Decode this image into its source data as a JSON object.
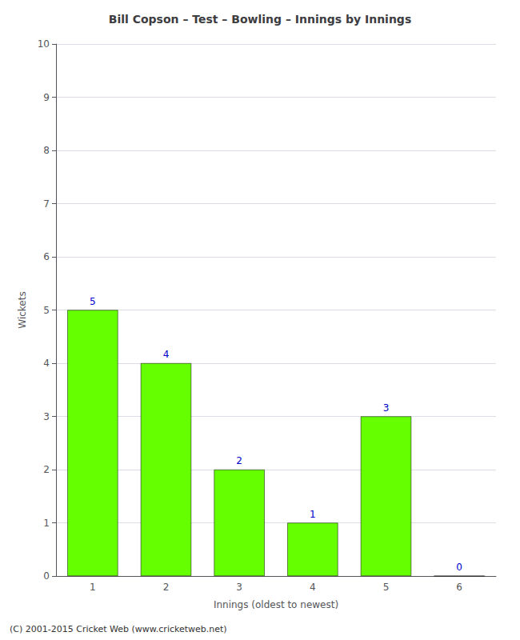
{
  "chart_data": {
    "type": "bar",
    "title": "Bill Copson – Test – Bowling – Innings by Innings",
    "xlabel": "Innings (oldest to newest)",
    "ylabel": "Wickets",
    "categories": [
      "1",
      "2",
      "3",
      "4",
      "5",
      "6"
    ],
    "values": [
      5,
      4,
      2,
      1,
      3,
      0
    ],
    "color": "#66ff00",
    "ylim": [
      0,
      10
    ],
    "yticks": [
      0,
      1,
      2,
      3,
      4,
      5,
      6,
      7,
      8,
      9,
      10
    ],
    "grid": true,
    "data_labels": true,
    "footer": "(C) 2001-2015 Cricket Web (www.cricketweb.net)"
  }
}
